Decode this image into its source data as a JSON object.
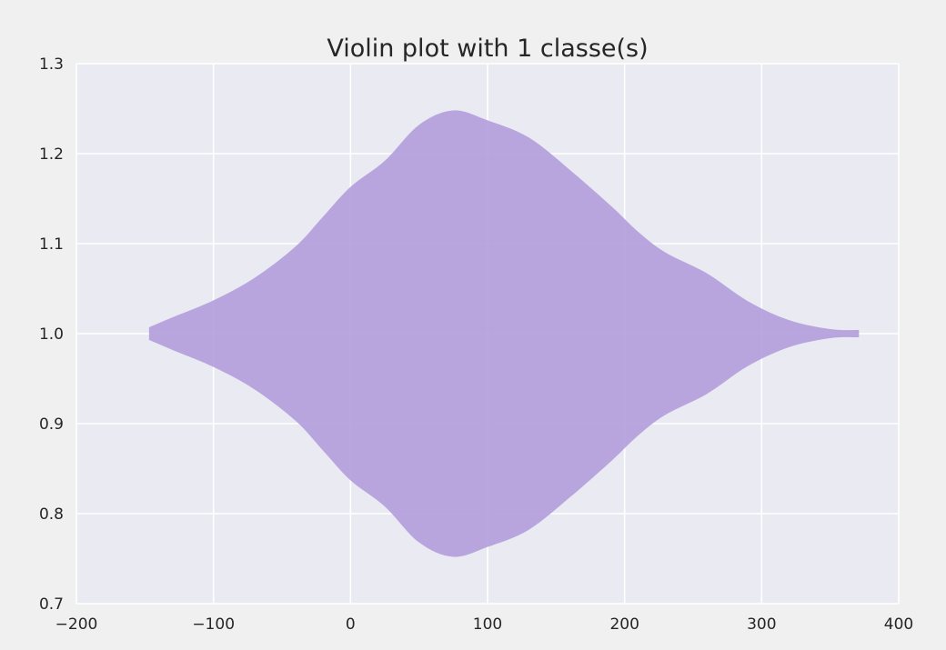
{
  "chart_data": {
    "type": "violin",
    "title": "Violin plot with 1 classe(s)",
    "xlabel": "",
    "ylabel": "",
    "xlim": [
      -200,
      400
    ],
    "ylim": [
      0.7,
      1.3
    ],
    "x_ticks": [
      -200,
      -100,
      0,
      100,
      200,
      300,
      400
    ],
    "x_tick_labels": [
      "−200",
      "−100",
      "0",
      "100",
      "200",
      "300",
      "400"
    ],
    "y_ticks": [
      0.7,
      0.8,
      0.9,
      1.0,
      1.1,
      1.2,
      1.3
    ],
    "y_tick_labels": [
      "0.7",
      "0.8",
      "0.9",
      "1.0",
      "1.1",
      "1.2",
      "1.3"
    ],
    "grid": true,
    "orientation": "horizontal",
    "series": [
      {
        "position": 1.0,
        "color": "#b39ddb",
        "x_min": -147,
        "x_max": 371,
        "half_width_profile": [
          {
            "x": -147,
            "w": 0.007
          },
          {
            "x": -130,
            "w": 0.018
          },
          {
            "x": -100,
            "w": 0.037
          },
          {
            "x": -70,
            "w": 0.062
          },
          {
            "x": -40,
            "w": 0.097
          },
          {
            "x": -20,
            "w": 0.13
          },
          {
            "x": 0,
            "w": 0.163
          },
          {
            "x": 25,
            "w": 0.192
          },
          {
            "x": 50,
            "w": 0.232
          },
          {
            "x": 75,
            "w": 0.248
          },
          {
            "x": 100,
            "w": 0.237
          },
          {
            "x": 130,
            "w": 0.218
          },
          {
            "x": 160,
            "w": 0.182
          },
          {
            "x": 190,
            "w": 0.142
          },
          {
            "x": 210,
            "w": 0.113
          },
          {
            "x": 230,
            "w": 0.09
          },
          {
            "x": 260,
            "w": 0.067
          },
          {
            "x": 290,
            "w": 0.036
          },
          {
            "x": 320,
            "w": 0.015
          },
          {
            "x": 350,
            "w": 0.005
          },
          {
            "x": 371,
            "w": 0.004
          }
        ]
      }
    ]
  }
}
